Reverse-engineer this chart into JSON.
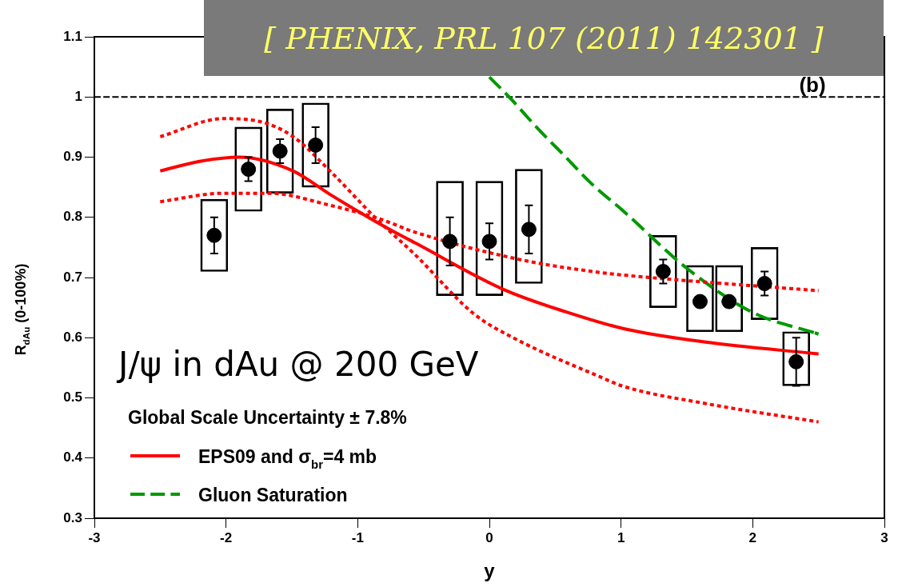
{
  "chart_data": {
    "type": "scatter",
    "xlabel": "y",
    "ylabel": "R$_{dAu}$ (0-100%)",
    "annotations": [
      "[ PHENIX, PRL 107 (2011) 142301 ]",
      "(b)",
      "J/ψ in dAu @ 200 GeV",
      "Global Scale Uncertainty ± 7.8%"
    ],
    "xlim": [
      -3,
      3
    ],
    "xticks": [
      -3,
      -2,
      -1,
      0,
      1,
      2,
      3
    ],
    "ylim": [
      0.3,
      1.1
    ],
    "yticks": [
      0.3,
      0.4,
      0.5,
      0.6,
      0.7,
      0.8,
      0.9,
      1,
      1.1
    ],
    "grid": false,
    "legend": "bottom left",
    "ref_lines": [
      {
        "axis": "y",
        "value": 1,
        "color": "#000000",
        "line_style": "dashed"
      }
    ],
    "series": [
      {
        "type": "bar",
        "color": "#000000",
        "x": [
          -2.09,
          -1.83,
          -1.59,
          -1.32,
          -0.3,
          0,
          0.3,
          1.32,
          1.6,
          1.82,
          2.09,
          2.33
        ],
        "base": [
          0.71,
          0.81,
          0.84,
          0.85,
          0.67,
          0.67,
          0.69,
          0.65,
          0.61,
          0.61,
          0.63,
          0.52
        ],
        "values": [
          0.12,
          0.14,
          0.14,
          0.14,
          0.19,
          0.19,
          0.19,
          0.12,
          0.11,
          0.11,
          0.12,
          0.09
        ]
      },
      {
        "color": "#000000",
        "marker": "circle",
        "x": [
          -2.09,
          -1.83,
          -1.59,
          -1.32,
          -0.3,
          0,
          0.3,
          1.32,
          1.6,
          1.82,
          2.09,
          2.33
        ],
        "values": [
          0.77,
          0.88,
          0.91,
          0.92,
          0.76,
          0.76,
          0.78,
          0.71,
          0.66,
          0.66,
          0.69,
          0.56
        ],
        "errors": [
          0.03,
          0.02,
          0.02,
          0.03,
          0.04,
          0.03,
          0.04,
          0.02,
          null,
          null,
          0.02,
          0.04
        ]
      },
      {
        "type": "line",
        "name": "EPS09 and σ$_{br}$=4 mb",
        "color": "#ff0000",
        "line_style": "solid",
        "marker": "none",
        "x": [
          -2.5,
          -2.2,
          -1.9,
          -1.49,
          -1.21,
          -0.8,
          -0.56,
          0.11,
          0.58,
          1.02,
          1.63,
          2.5
        ],
        "values": [
          0.877,
          0.893,
          0.9,
          0.877,
          0.838,
          0.785,
          0.757,
          0.68,
          0.643,
          0.615,
          0.593,
          0.573
        ]
      },
      {
        "type": "line",
        "color": "#ff0000",
        "line_style": "dotted",
        "marker": "none",
        "x": [
          -2.5,
          -2.02,
          -1.76,
          -1.49,
          -1.21,
          -0.86,
          -0.56,
          -0.12,
          0.18,
          0.84,
          1.02,
          1.63,
          2.5
        ],
        "values": [
          0.934,
          0.964,
          0.96,
          0.934,
          0.877,
          0.798,
          0.737,
          0.64,
          0.6,
          0.535,
          0.519,
          0.491,
          0.46
        ]
      },
      {
        "type": "line",
        "color": "#ff0000",
        "line_style": "dotted",
        "marker": "none",
        "x": [
          -2.5,
          -2.02,
          -1.67,
          -1.21,
          -0.84,
          -0.56,
          0.25,
          0.78,
          1.02,
          2.5
        ],
        "values": [
          0.826,
          0.84,
          0.84,
          0.82,
          0.798,
          0.775,
          0.729,
          0.71,
          0.704,
          0.678
        ]
      },
      {
        "type": "line",
        "name": "Gluon Saturation",
        "color": "#009900",
        "line_style": "dashed",
        "marker": "none",
        "x": [
          0,
          0.15,
          0.37,
          0.58,
          0.78,
          1.02,
          1.49,
          1.99,
          2.5
        ],
        "values": [
          1.033,
          1,
          0.947,
          0.9,
          0.855,
          0.81,
          0.717,
          0.643,
          0.606
        ]
      }
    ]
  }
}
